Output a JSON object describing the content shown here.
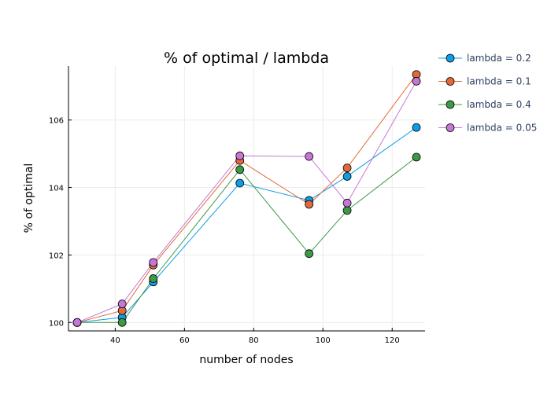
{
  "chart_data": {
    "type": "line",
    "title": "% of optimal / lambda",
    "xlabel": "number of nodes",
    "ylabel": "% of optimal",
    "xlim": [
      26.5,
      129.5
    ],
    "ylim": [
      99.75,
      107.6
    ],
    "xticks": [
      40,
      60,
      80,
      100,
      120
    ],
    "yticks": [
      100,
      102,
      104,
      106
    ],
    "grid": true,
    "legend_position": "top-right",
    "x": [
      29,
      42,
      51,
      76,
      96,
      107,
      127
    ],
    "series": [
      {
        "name": "lambda = 0.2",
        "color": "#0f9de5",
        "values": [
          100.0,
          100.15,
          101.2,
          104.13,
          103.62,
          104.33,
          105.78
        ]
      },
      {
        "name": "lambda = 0.1",
        "color": "#e26a3a",
        "values": [
          100.0,
          100.35,
          101.7,
          104.8,
          103.5,
          104.58,
          107.35
        ]
      },
      {
        "name": "lambda = 0.4",
        "color": "#3c9a47",
        "values": [
          100.0,
          100.0,
          101.3,
          104.53,
          102.04,
          103.32,
          104.9
        ]
      },
      {
        "name": "lambda = 0.05",
        "color": "#c677d6",
        "values": [
          100.0,
          100.55,
          101.78,
          104.94,
          104.92,
          103.54,
          107.15
        ]
      }
    ]
  }
}
